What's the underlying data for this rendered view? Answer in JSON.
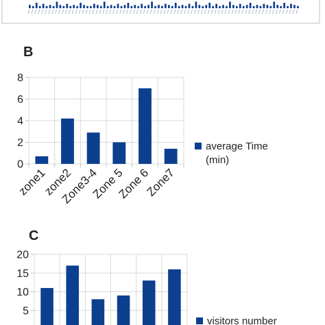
{
  "panels": [
    {
      "letter": "B"
    },
    {
      "letter": "C"
    }
  ],
  "colors": {
    "bar": "#0d3f8f",
    "frame": "#bfbfbf",
    "grid": "#d9d9d9"
  },
  "chart_data": [
    {
      "id": "A",
      "type": "bar",
      "note_partial": "Only the bottom of this panel is visible; individual values and labels are unreadable.",
      "title": "",
      "xlabel": "",
      "ylabel": "",
      "values": [
        3,
        2,
        5,
        2,
        4,
        2,
        3,
        2,
        6,
        3,
        2,
        4,
        2,
        3,
        2,
        5,
        3,
        2,
        2,
        4,
        3,
        2,
        6,
        2,
        3,
        2,
        4,
        2,
        3,
        5,
        2,
        3,
        2,
        4,
        2,
        3,
        6,
        2,
        3,
        2,
        4,
        3,
        2,
        5,
        2,
        3,
        2,
        4,
        2,
        6,
        3,
        2,
        3,
        5,
        2,
        4,
        2,
        3,
        2,
        6,
        3,
        2,
        4,
        2,
        3,
        5,
        2,
        3,
        2,
        4,
        3,
        2,
        6,
        3,
        2,
        5,
        2,
        4,
        3,
        2
      ]
    },
    {
      "id": "B",
      "type": "bar",
      "title": "",
      "xlabel": "",
      "ylabel": "",
      "categories": [
        "zone1",
        "zone2",
        "Zone3-4",
        "Zone 5",
        "Zone 6",
        "Zone7"
      ],
      "series": [
        {
          "name": "average Time (min)",
          "values": [
            0.7,
            4.2,
            2.9,
            2.0,
            7.0,
            1.4
          ]
        }
      ],
      "legend_lines": [
        "average Time",
        "(min)"
      ],
      "ylim": [
        0,
        8
      ],
      "yticks": [
        "0",
        "2",
        "4",
        "6",
        "8"
      ],
      "grid": true,
      "legend_position": "right"
    },
    {
      "id": "C",
      "type": "bar",
      "title": "",
      "xlabel": "",
      "ylabel": "",
      "categories": [
        "",
        "",
        "",
        "",
        "",
        ""
      ],
      "series": [
        {
          "name": "visitors number",
          "values": [
            11,
            17,
            8,
            9,
            13,
            16
          ]
        }
      ],
      "legend_lines": [
        "visitors number"
      ],
      "ylim": [
        0,
        20
      ],
      "yticks": [
        "0",
        "5",
        "10",
        "15",
        "20"
      ],
      "grid": true,
      "legend_position": "right"
    }
  ]
}
